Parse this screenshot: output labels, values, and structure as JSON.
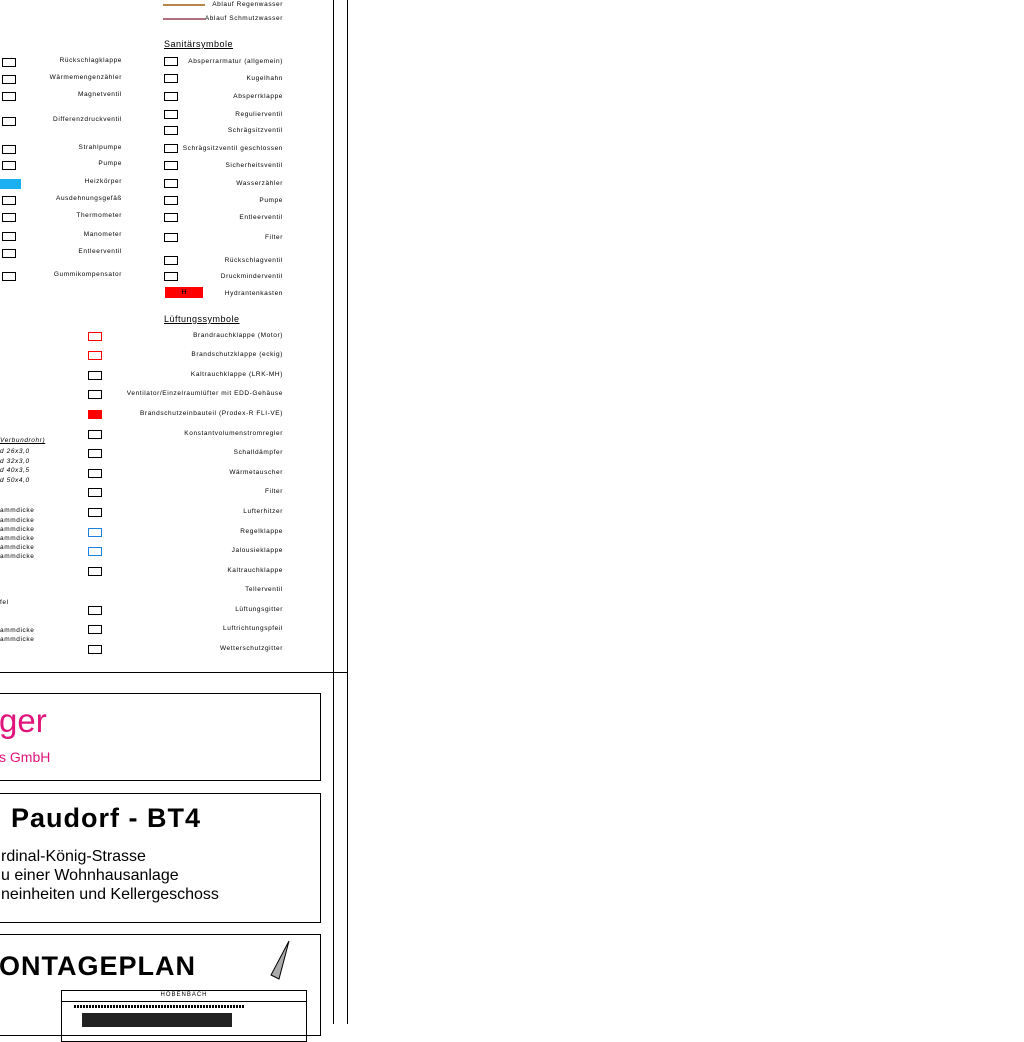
{
  "pipes": [
    {
      "label": "Ablauf Regenwasser",
      "color": "#b8864b"
    },
    {
      "label": "Ablauf Schmutzwasser",
      "color": "#b07080"
    }
  ],
  "left_symbols": [
    "Rückschlagklappe",
    "Wärmemengenzähler",
    "Magnetventil",
    "Differenzdruckventil",
    "Strahlpumpe",
    "Pumpe",
    "Heizkörper",
    "Ausdehnungsgefäß",
    "Thermometer",
    "Manometer",
    "Entleerventil",
    "Gummikompensator"
  ],
  "sanitary": {
    "title": "Sanitärsymbole",
    "items": [
      "Absperrarmatur (allgemein)",
      "Kugelhahn",
      "Absperrklappe",
      "Regulierventil",
      "Schrägsitzventil",
      "Schrägsitzventil geschlossen",
      "Sicherheitsventil",
      "Wasserzähler",
      "Pumpe",
      "Entleerventil",
      "Filter",
      "Rückschlagventil",
      "Druckminderventil",
      "Hydrantenkasten"
    ],
    "hydrant_letter": "H"
  },
  "ventilation": {
    "title": "Lüftungssymbole",
    "items": [
      "Brandrauchklappe (Motor)",
      "Brandschutzklappe (eckig)",
      "Kaltrauchklappe (LRK-MH)",
      "Ventilator/Einzelraumlüfter mit EDD-Gehäuse",
      "Brandschutzeinbauteil (Prodex-R FLI-VE)",
      "Konstantvolumenstromregler",
      "Schalldämpfer",
      "Wärmetauscher",
      "Filter",
      "Lufterhitzer",
      "Regelklappe",
      "Jalousieklappe",
      "Kaltrauchklappe",
      "Tellerventil",
      "Lüftungsgitter",
      "Luftrichtungspfeil",
      "Wetterschutzgitter"
    ]
  },
  "pipe_table": {
    "header": "Verbundrohr)",
    "rows": [
      "d 26x3,0",
      "d 32x3,0",
      "d 40x3,5",
      "d 50x4,0"
    ],
    "insulation": [
      "ammdicke",
      "ammdicke",
      "ammdicke",
      "ammdicke",
      "ammdicke",
      "ammdicke"
    ],
    "extra": "fel",
    "insulation2": [
      "ammdicke",
      "ammdicke"
    ]
  },
  "company": {
    "name": "ger",
    "sub": "s GmbH",
    "color": "#e0147c"
  },
  "project": {
    "title": "Paudorf - BT4",
    "line1": "rdinal-König-Strasse",
    "line2": "u einer Wohnhausanlage",
    "line3": "neinheiten und Kellergeschoss"
  },
  "plan": {
    "title": "ONTAGEPLAN",
    "street": "HÖBENBACH"
  },
  "colors": {
    "heater": "#1ab0f0",
    "fire": "#ff0000",
    "damper": "#1a80e0"
  }
}
